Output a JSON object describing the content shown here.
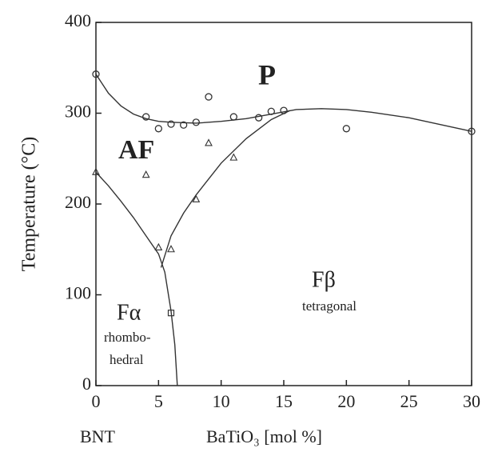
{
  "chart_data": {
    "type": "scatter",
    "y_label": "Temperature (°C)",
    "x_label": "BaTiO₃ [mol %]",
    "xlim": [
      0,
      30
    ],
    "ylim": [
      0,
      400
    ],
    "xticks": [
      0,
      5,
      10,
      15,
      20,
      25,
      30
    ],
    "yticks": [
      0,
      100,
      200,
      300,
      400
    ],
    "color": "#333333",
    "series": [
      {
        "marker": "circle",
        "x": [
          0,
          4,
          5,
          6,
          7,
          8,
          9,
          11,
          13,
          14,
          15,
          20,
          30
        ],
        "values": [
          343,
          296,
          283,
          288,
          287,
          290,
          318,
          296,
          295,
          302,
          303,
          283,
          280
        ]
      },
      {
        "marker": "triangle",
        "x": [
          0,
          4,
          5,
          6,
          8,
          9,
          11
        ],
        "values": [
          235,
          232,
          152,
          150,
          205,
          267,
          251
        ]
      },
      {
        "marker": "square",
        "x": [
          6
        ],
        "values": [
          80
        ]
      }
    ],
    "curves": [
      {
        "x": [
          0,
          1,
          2,
          3,
          4,
          5,
          6,
          8,
          10,
          12,
          14,
          16,
          18,
          20,
          22,
          25,
          30
        ],
        "values": [
          343,
          322,
          308,
          299,
          294,
          291,
          290,
          289,
          291,
          294,
          299,
          304,
          305,
          304,
          301,
          295,
          280
        ]
      },
      {
        "x": [
          0,
          1,
          2,
          3,
          4,
          5,
          5.5,
          6,
          6.3,
          6.5
        ],
        "values": [
          235,
          220,
          203,
          185,
          165,
          145,
          125,
          82,
          45,
          0
        ]
      },
      {
        "x": [
          5.2,
          6,
          7,
          8,
          10,
          12,
          14,
          15.5
        ],
        "values": [
          130,
          165,
          190,
          210,
          245,
          272,
          293,
          303
        ]
      }
    ],
    "annotations": [
      "P",
      "AF",
      "Fα",
      "rhombo-",
      "hedral",
      "Fβ",
      "tetragonal",
      "BNT"
    ]
  }
}
